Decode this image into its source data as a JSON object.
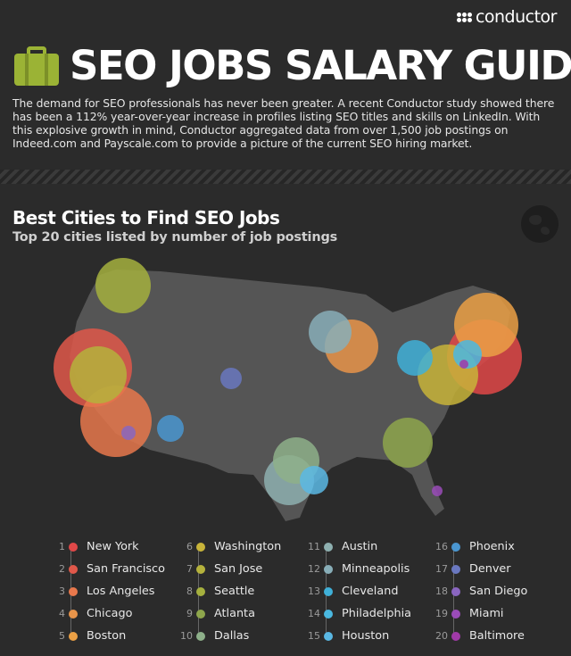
{
  "brand": {
    "name": "conductor"
  },
  "header": {
    "title": "SEO JOBS SALARY GUIDE",
    "intro": "The demand for SEO professionals has never been greater. A recent Conductor study showed there has been a 112% year-over-year increase in profiles listing SEO titles and skills on LinkedIn. With this explosive growth in mind, Conductor aggregated data from over 1,500 job postings on Indeed.com and Payscale.com to provide a picture of the current SEO hiring market."
  },
  "section": {
    "title": "Best Cities to Find SEO Jobs",
    "subtitle": "Top 20 cities listed by number of job postings"
  },
  "cities": [
    {
      "rank": "1",
      "name": "New York",
      "color": "#e04848"
    },
    {
      "rank": "2",
      "name": "San Francisco",
      "color": "#e0584a"
    },
    {
      "rank": "3",
      "name": "Los Angeles",
      "color": "#e8784c"
    },
    {
      "rank": "4",
      "name": "Chicago",
      "color": "#e8944a"
    },
    {
      "rank": "5",
      "name": "Boston",
      "color": "#eba045"
    },
    {
      "rank": "6",
      "name": "Washington",
      "color": "#c8b43a"
    },
    {
      "rank": "7",
      "name": "San Jose",
      "color": "#b5b23c"
    },
    {
      "rank": "8",
      "name": "Seattle",
      "color": "#a5b03e"
    },
    {
      "rank": "9",
      "name": "Atlanta",
      "color": "#8ea64c"
    },
    {
      "rank": "10",
      "name": "Dallas",
      "color": "#8eb08a"
    },
    {
      "rank": "11",
      "name": "Austin",
      "color": "#8eb0b0"
    },
    {
      "rank": "12",
      "name": "Minneapolis",
      "color": "#88aeb8"
    },
    {
      "rank": "13",
      "name": "Cleveland",
      "color": "#3fb0d8"
    },
    {
      "rank": "14",
      "name": "Philadelphia",
      "color": "#4ab8e0"
    },
    {
      "rank": "15",
      "name": "Houston",
      "color": "#5ab8e4"
    },
    {
      "rank": "16",
      "name": "Phoenix",
      "color": "#4a96d0"
    },
    {
      "rank": "17",
      "name": "Denver",
      "color": "#6a78c0"
    },
    {
      "rank": "18",
      "name": "San Diego",
      "color": "#8a66c0"
    },
    {
      "rank": "19",
      "name": "Miami",
      "color": "#9a4cb8"
    },
    {
      "rank": "20",
      "name": "Baltimore",
      "color": "#a03aa8"
    }
  ]
}
